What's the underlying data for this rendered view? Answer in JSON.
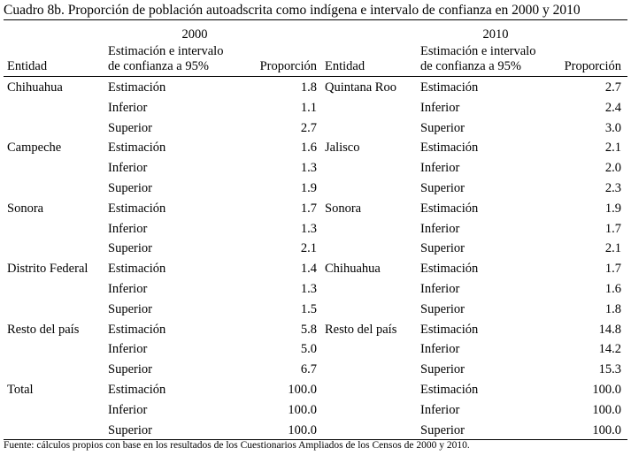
{
  "title": "Cuadro 8b. Proporción de población autoadscrita como indígena e intervalo de confianza en 2000 y 2010",
  "headers": {
    "entity": "Entidad",
    "estimate_line1": "Estimación e intervalo",
    "estimate_line2": "de confianza a 95%",
    "proportion": "Proporción"
  },
  "years": [
    "2000",
    "2010"
  ],
  "left": [
    {
      "entity": "Chihuahua",
      "rows": [
        {
          "label": "Estimación",
          "value": "1.8"
        },
        {
          "label": "Inferior",
          "value": "1.1"
        },
        {
          "label": "Superior",
          "value": "2.7"
        }
      ]
    },
    {
      "entity": "Campeche",
      "rows": [
        {
          "label": "Estimación",
          "value": "1.6"
        },
        {
          "label": "Inferior",
          "value": "1.3"
        },
        {
          "label": "Superior",
          "value": "1.9"
        }
      ]
    },
    {
      "entity": "Sonora",
      "rows": [
        {
          "label": "Estimación",
          "value": "1.7"
        },
        {
          "label": "Inferior",
          "value": "1.3"
        },
        {
          "label": "Superior",
          "value": "2.1"
        }
      ]
    },
    {
      "entity": "Distrito Federal",
      "rows": [
        {
          "label": "Estimación",
          "value": "1.4"
        },
        {
          "label": "Inferior",
          "value": "1.3"
        },
        {
          "label": "Superior",
          "value": "1.5"
        }
      ]
    },
    {
      "entity": "Resto del país",
      "rows": [
        {
          "label": "Estimación",
          "value": "5.8"
        },
        {
          "label": "Inferior",
          "value": "5.0"
        },
        {
          "label": "Superior",
          "value": "6.7"
        }
      ]
    },
    {
      "entity": "Total",
      "rows": [
        {
          "label": "Estimación",
          "value": "100.0"
        },
        {
          "label": "Inferior",
          "value": "100.0"
        },
        {
          "label": "Superior",
          "value": "100.0"
        }
      ]
    }
  ],
  "right": [
    {
      "entity": "Quintana Roo",
      "rows": [
        {
          "label": "Estimación",
          "value": "2.7"
        },
        {
          "label": "Inferior",
          "value": "2.4"
        },
        {
          "label": "Superior",
          "value": "3.0"
        }
      ]
    },
    {
      "entity": "Jalisco",
      "rows": [
        {
          "label": "Estimación",
          "value": "2.1"
        },
        {
          "label": "Inferior",
          "value": "2.0"
        },
        {
          "label": "Superior",
          "value": "2.3"
        }
      ]
    },
    {
      "entity": "Sonora",
      "rows": [
        {
          "label": "Estimación",
          "value": "1.9"
        },
        {
          "label": "Inferior",
          "value": "1.7"
        },
        {
          "label": "Superior",
          "value": "2.1"
        }
      ]
    },
    {
      "entity": "Chihuahua",
      "rows": [
        {
          "label": "Estimación",
          "value": "1.7"
        },
        {
          "label": "Inferior",
          "value": "1.6"
        },
        {
          "label": "Superior",
          "value": "1.8"
        }
      ]
    },
    {
      "entity": "Resto del país",
      "rows": [
        {
          "label": "Estimación",
          "value": "14.8"
        },
        {
          "label": "Inferior",
          "value": "14.2"
        },
        {
          "label": "Superior",
          "value": "15.3"
        }
      ]
    },
    {
      "entity": "",
      "rows": [
        {
          "label": "Estimación",
          "value": "100.0"
        },
        {
          "label": "Inferior",
          "value": "100.0"
        },
        {
          "label": "Superior",
          "value": "100.0"
        }
      ]
    }
  ],
  "footnote": "Fuente: cálculos propios con base en los resultados de los Cuestionarios Ampliados de los Censos de 2000 y 2010."
}
